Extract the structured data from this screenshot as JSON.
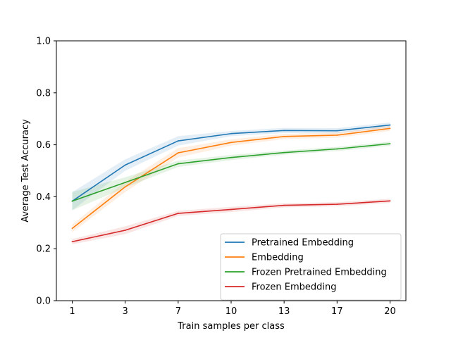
{
  "chart_data": {
    "type": "line",
    "title": "",
    "xlabel": "Train samples per class",
    "ylabel": "Average Test Accuracy",
    "x": [
      "1",
      "3",
      "7",
      "10",
      "13",
      "17",
      "20"
    ],
    "ylim": [
      0.0,
      1.0
    ],
    "yticks": [
      "0.0",
      "0.2",
      "0.4",
      "0.6",
      "0.8",
      "1.0"
    ],
    "grid": false,
    "legend_position": "lower-right",
    "series": [
      {
        "name": "Pretrained Embedding",
        "color": "#1f77b4",
        "values": [
          0.383,
          0.522,
          0.615,
          0.643,
          0.655,
          0.654,
          0.676
        ],
        "band": [
          0.035,
          0.022,
          0.018,
          0.01,
          0.01,
          0.01,
          0.01
        ]
      },
      {
        "name": "Embedding",
        "color": "#ff7f0e",
        "values": [
          0.278,
          0.438,
          0.569,
          0.609,
          0.632,
          0.637,
          0.663
        ],
        "band": [
          0.015,
          0.02,
          0.018,
          0.012,
          0.01,
          0.01,
          0.01
        ]
      },
      {
        "name": "Frozen Pretrained Embedding",
        "color": "#2ca02c",
        "values": [
          0.383,
          0.455,
          0.527,
          0.551,
          0.57,
          0.584,
          0.604
        ],
        "band": [
          0.035,
          0.02,
          0.012,
          0.01,
          0.008,
          0.008,
          0.008
        ]
      },
      {
        "name": "Frozen Embedding",
        "color": "#d62728",
        "values": [
          0.227,
          0.271,
          0.336,
          0.351,
          0.367,
          0.371,
          0.384
        ],
        "band": [
          0.01,
          0.015,
          0.01,
          0.01,
          0.008,
          0.008,
          0.008
        ]
      }
    ]
  }
}
